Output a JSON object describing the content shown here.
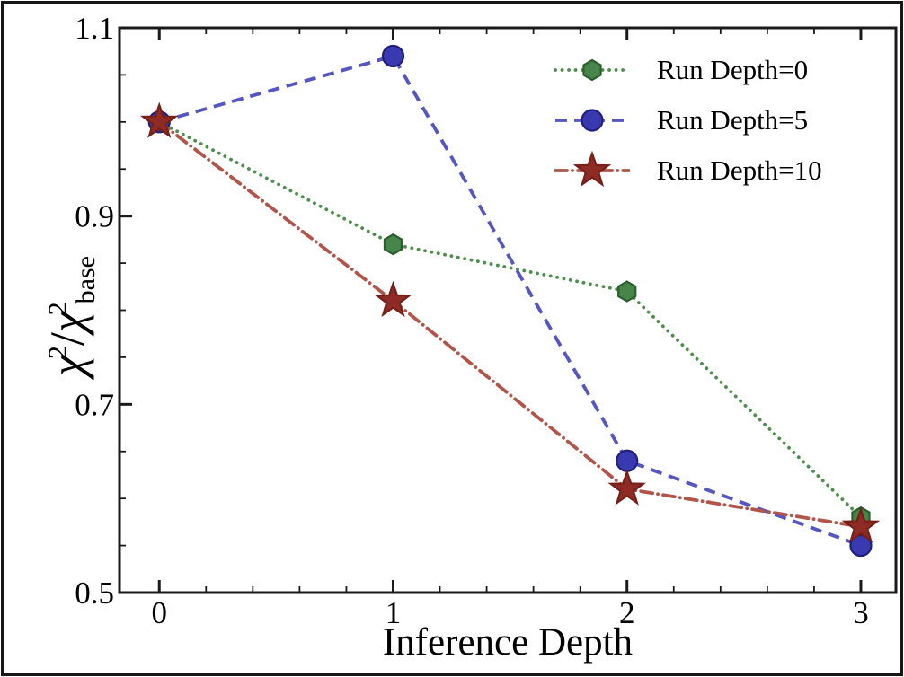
{
  "chart_data": {
    "type": "line",
    "title": "",
    "xlabel": "Inference Depth",
    "ylabel": "chi^2 / chi^2_base",
    "x": [
      0,
      1,
      2,
      3
    ],
    "series": [
      {
        "name": "Run Depth=0",
        "marker": "hexagon",
        "linestyle": "dotted",
        "line_color": "#4e8d4e",
        "marker_fill": "#47854a",
        "marker_edge": "#2c5f2e",
        "values": [
          1.0,
          0.87,
          0.82,
          0.58
        ]
      },
      {
        "name": "Run Depth=5",
        "marker": "circle",
        "linestyle": "dashed",
        "line_color": "#5556bf",
        "marker_fill": "#3a3ab0",
        "marker_edge": "#20207e",
        "values": [
          1.0,
          1.07,
          0.64,
          0.55
        ]
      },
      {
        "name": "Run Depth=10",
        "marker": "star",
        "linestyle": "dashdot",
        "line_color": "#b1554a",
        "marker_fill": "#8e2b25",
        "marker_edge": "#771f19",
        "values": [
          1.0,
          0.81,
          0.61,
          0.57
        ]
      }
    ],
    "xlim": [
      -0.17,
      3.15
    ],
    "ylim": [
      0.5,
      1.1
    ],
    "x_major_ticks": [
      0,
      1,
      2,
      3
    ],
    "x_tick_labels": [
      "0",
      "1",
      "2",
      "3"
    ],
    "x_minor_step": 0.2,
    "y_major_ticks": [
      0.5,
      0.7,
      0.9,
      1.1
    ],
    "y_tick_labels": [
      "0.5",
      "0.7",
      "0.9",
      "1.1"
    ],
    "y_minor_step": 0.05,
    "grid": false,
    "legend_position": "upper right",
    "axis_color": "#1a1a1a",
    "background_color": "#ffffff"
  },
  "ylabel_parts": {
    "chi": "χ",
    "exp": "2",
    "slash": "/",
    "chi2": "χ",
    "exp2": "2",
    "sub": "base"
  }
}
